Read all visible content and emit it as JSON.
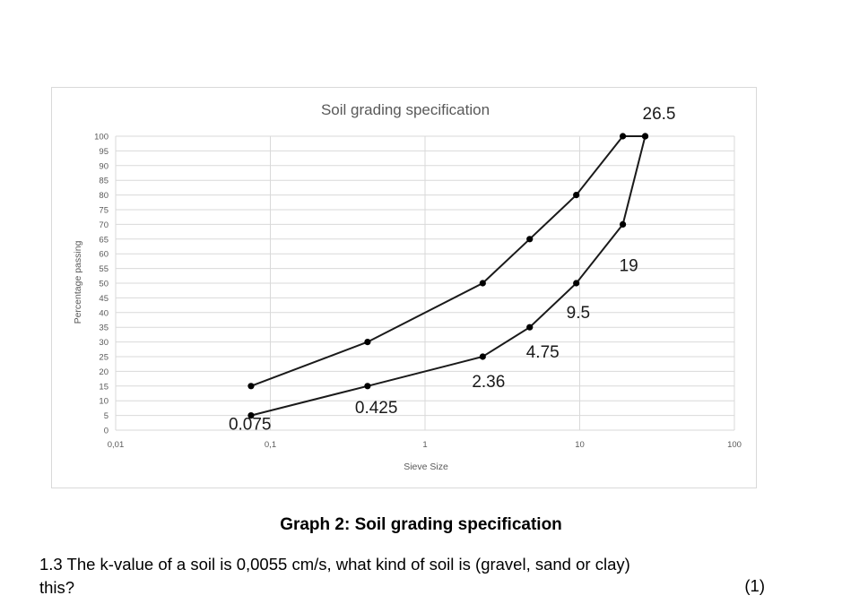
{
  "chart_data": {
    "type": "line",
    "title": "Soil grading specification",
    "xlabel": "Sieve Size",
    "ylabel": "Percentage passing",
    "x_scale": "log",
    "xlim": [
      0.01,
      100
    ],
    "ylim": [
      0,
      100
    ],
    "x_ticks": [
      "0,01",
      "0,1",
      "1",
      "10",
      "100"
    ],
    "y_ticks": [
      "0",
      "5",
      "10",
      "15",
      "20",
      "25",
      "30",
      "35",
      "40",
      "45",
      "50",
      "55",
      "60",
      "65",
      "70",
      "75",
      "80",
      "85",
      "90",
      "95",
      "100"
    ],
    "grid": true,
    "series": [
      {
        "points": [
          [
            0.075,
            15
          ],
          [
            0.425,
            30
          ],
          [
            2.36,
            50
          ],
          [
            4.75,
            65
          ],
          [
            9.5,
            80
          ],
          [
            19,
            100
          ],
          [
            26.5,
            100
          ]
        ]
      },
      {
        "points": [
          [
            0.075,
            5
          ],
          [
            0.425,
            15
          ],
          [
            2.36,
            25
          ],
          [
            4.75,
            35
          ],
          [
            9.5,
            50
          ],
          [
            19,
            70
          ],
          [
            26.5,
            100
          ]
        ]
      }
    ],
    "annotations": [
      {
        "text": "0.075",
        "x": 0.075,
        "y": 5
      },
      {
        "text": "0.425",
        "x": 0.425,
        "y": 15
      },
      {
        "text": "2.36",
        "x": 2.36,
        "y": 25
      },
      {
        "text": "4.75",
        "x": 4.75,
        "y": 35
      },
      {
        "text": "9.5",
        "x": 9.5,
        "y": 50
      },
      {
        "text": "19",
        "x": 19,
        "y": 70
      },
      {
        "text": "26.5",
        "x": 26.5,
        "y": 100
      }
    ]
  },
  "caption": "Graph 2: Soil grading specification",
  "question": {
    "line1": "1.3 The k-value of a soil is 0,0055 cm/s, what kind of soil is (gravel, sand or clay)",
    "line2": "this?",
    "marks": "(1)"
  },
  "colors": {
    "line": "#1a1a1a",
    "grid": "#d9d9d9",
    "axis_text": "#595959",
    "title": "#595959"
  }
}
